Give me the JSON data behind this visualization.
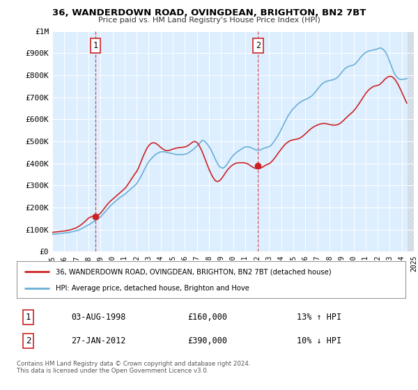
{
  "title": "36, WANDERDOWN ROAD, OVINGDEAN, BRIGHTON, BN2 7BT",
  "subtitle": "Price paid vs. HM Land Registry's House Price Index (HPI)",
  "ylim": [
    0,
    1000000
  ],
  "yticks": [
    0,
    100000,
    200000,
    300000,
    400000,
    500000,
    600000,
    700000,
    800000,
    900000,
    1000000
  ],
  "ytick_labels": [
    "£0",
    "£100K",
    "£200K",
    "£300K",
    "£400K",
    "£500K",
    "£600K",
    "£700K",
    "£800K",
    "£900K",
    "£1M"
  ],
  "hpi_color": "#6aaed6",
  "price_color": "#cc2222",
  "chart_bg": "#ddeeff",
  "bg_color": "#ffffff",
  "grid_color": "#ffffff",
  "sale1_year": 1998.6,
  "sale1_price": 160000,
  "sale2_year": 2012.08,
  "sale2_price": 390000,
  "xmin": 1995,
  "xmax": 2025,
  "future_start": 2024.5,
  "legend_line1": "36, WANDERDOWN ROAD, OVINGDEAN, BRIGHTON, BN2 7BT (detached house)",
  "legend_line2": "HPI: Average price, detached house, Brighton and Hove",
  "table_row1": [
    "1",
    "03-AUG-1998",
    "£160,000",
    "13% ↑ HPI"
  ],
  "table_row2": [
    "2",
    "27-JAN-2012",
    "£390,000",
    "10% ↓ HPI"
  ],
  "footnote": "Contains HM Land Registry data © Crown copyright and database right 2024.\nThis data is licensed under the Open Government Licence v3.0.",
  "hpi_x": [
    1995.0,
    1995.08,
    1995.17,
    1995.25,
    1995.33,
    1995.42,
    1995.5,
    1995.58,
    1995.67,
    1995.75,
    1995.83,
    1995.92,
    1996.0,
    1996.08,
    1996.17,
    1996.25,
    1996.33,
    1996.42,
    1996.5,
    1996.58,
    1996.67,
    1996.75,
    1996.83,
    1996.92,
    1997.0,
    1997.08,
    1997.17,
    1997.25,
    1997.33,
    1997.42,
    1997.5,
    1997.58,
    1997.67,
    1997.75,
    1997.83,
    1997.92,
    1998.0,
    1998.08,
    1998.17,
    1998.25,
    1998.33,
    1998.42,
    1998.5,
    1998.58,
    1998.67,
    1998.75,
    1998.83,
    1998.92,
    1999.0,
    1999.08,
    1999.17,
    1999.25,
    1999.33,
    1999.42,
    1999.5,
    1999.58,
    1999.67,
    1999.75,
    1999.83,
    1999.92,
    2000.0,
    2000.08,
    2000.17,
    2000.25,
    2000.33,
    2000.42,
    2000.5,
    2000.58,
    2000.67,
    2000.75,
    2000.83,
    2000.92,
    2001.0,
    2001.08,
    2001.17,
    2001.25,
    2001.33,
    2001.42,
    2001.5,
    2001.58,
    2001.67,
    2001.75,
    2001.83,
    2001.92,
    2002.0,
    2002.08,
    2002.17,
    2002.25,
    2002.33,
    2002.42,
    2002.5,
    2002.58,
    2002.67,
    2002.75,
    2002.83,
    2002.92,
    2003.0,
    2003.08,
    2003.17,
    2003.25,
    2003.33,
    2003.42,
    2003.5,
    2003.58,
    2003.67,
    2003.75,
    2003.83,
    2003.92,
    2004.0,
    2004.08,
    2004.17,
    2004.25,
    2004.33,
    2004.42,
    2004.5,
    2004.58,
    2004.67,
    2004.75,
    2004.83,
    2004.92,
    2005.0,
    2005.08,
    2005.17,
    2005.25,
    2005.33,
    2005.42,
    2005.5,
    2005.58,
    2005.67,
    2005.75,
    2005.83,
    2005.92,
    2006.0,
    2006.08,
    2006.17,
    2006.25,
    2006.33,
    2006.42,
    2006.5,
    2006.58,
    2006.67,
    2006.75,
    2006.83,
    2006.92,
    2007.0,
    2007.08,
    2007.17,
    2007.25,
    2007.33,
    2007.42,
    2007.5,
    2007.58,
    2007.67,
    2007.75,
    2007.83,
    2007.92,
    2008.0,
    2008.08,
    2008.17,
    2008.25,
    2008.33,
    2008.42,
    2008.5,
    2008.58,
    2008.67,
    2008.75,
    2008.83,
    2008.92,
    2009.0,
    2009.08,
    2009.17,
    2009.25,
    2009.33,
    2009.42,
    2009.5,
    2009.58,
    2009.67,
    2009.75,
    2009.83,
    2009.92,
    2010.0,
    2010.08,
    2010.17,
    2010.25,
    2010.33,
    2010.42,
    2010.5,
    2010.58,
    2010.67,
    2010.75,
    2010.83,
    2010.92,
    2011.0,
    2011.08,
    2011.17,
    2011.25,
    2011.33,
    2011.42,
    2011.5,
    2011.58,
    2011.67,
    2011.75,
    2011.83,
    2011.92,
    2012.0,
    2012.08,
    2012.17,
    2012.25,
    2012.33,
    2012.42,
    2012.5,
    2012.58,
    2012.67,
    2012.75,
    2012.83,
    2012.92,
    2013.0,
    2013.08,
    2013.17,
    2013.25,
    2013.33,
    2013.42,
    2013.5,
    2013.58,
    2013.67,
    2013.75,
    2013.83,
    2013.92,
    2014.0,
    2014.08,
    2014.17,
    2014.25,
    2014.33,
    2014.42,
    2014.5,
    2014.58,
    2014.67,
    2014.75,
    2014.83,
    2014.92,
    2015.0,
    2015.08,
    2015.17,
    2015.25,
    2015.33,
    2015.42,
    2015.5,
    2015.58,
    2015.67,
    2015.75,
    2015.83,
    2015.92,
    2016.0,
    2016.08,
    2016.17,
    2016.25,
    2016.33,
    2016.42,
    2016.5,
    2016.58,
    2016.67,
    2016.75,
    2016.83,
    2016.92,
    2017.0,
    2017.08,
    2017.17,
    2017.25,
    2017.33,
    2017.42,
    2017.5,
    2017.58,
    2017.67,
    2017.75,
    2017.83,
    2017.92,
    2018.0,
    2018.08,
    2018.17,
    2018.25,
    2018.33,
    2018.42,
    2018.5,
    2018.58,
    2018.67,
    2018.75,
    2018.83,
    2018.92,
    2019.0,
    2019.08,
    2019.17,
    2019.25,
    2019.33,
    2019.42,
    2019.5,
    2019.58,
    2019.67,
    2019.75,
    2019.83,
    2019.92,
    2020.0,
    2020.08,
    2020.17,
    2020.25,
    2020.33,
    2020.42,
    2020.5,
    2020.58,
    2020.67,
    2020.75,
    2020.83,
    2020.92,
    2021.0,
    2021.08,
    2021.17,
    2021.25,
    2021.33,
    2021.42,
    2021.5,
    2021.58,
    2021.67,
    2021.75,
    2021.83,
    2021.92,
    2022.0,
    2022.08,
    2022.17,
    2022.25,
    2022.33,
    2022.42,
    2022.5,
    2022.58,
    2022.67,
    2022.75,
    2022.83,
    2022.92,
    2023.0,
    2023.08,
    2023.17,
    2023.25,
    2023.33,
    2023.42,
    2023.5,
    2023.58,
    2023.67,
    2023.75,
    2023.83,
    2023.92,
    2024.0,
    2024.08,
    2024.17,
    2024.25,
    2024.33,
    2024.42
  ],
  "hpi_y": [
    78000,
    78500,
    79000,
    79500,
    80000,
    80500,
    81000,
    81500,
    82000,
    82500,
    83000,
    83500,
    84000,
    84500,
    85000,
    85500,
    86000,
    87000,
    88000,
    89000,
    90000,
    91000,
    92000,
    93000,
    94000,
    95500,
    97000,
    99000,
    101000,
    103500,
    106000,
    108500,
    111000,
    113500,
    116000,
    118500,
    121000,
    123000,
    126000,
    129000,
    132000,
    135000,
    138000,
    141000,
    144000,
    147000,
    150000,
    153000,
    157000,
    162000,
    167000,
    172000,
    177000,
    183000,
    188000,
    193000,
    198000,
    203000,
    208000,
    212000,
    216000,
    220000,
    224000,
    228000,
    232000,
    236000,
    240000,
    244000,
    247000,
    250000,
    253000,
    256000,
    259000,
    263000,
    267000,
    271000,
    275000,
    279000,
    283000,
    287000,
    291000,
    295000,
    299000,
    303000,
    308000,
    315000,
    322000,
    330000,
    338000,
    347000,
    356000,
    365000,
    374000,
    383000,
    392000,
    400000,
    407000,
    413000,
    418000,
    423000,
    428000,
    433000,
    437000,
    441000,
    444000,
    447000,
    449000,
    451000,
    452000,
    453000,
    453000,
    453000,
    452000,
    451000,
    450000,
    449000,
    448000,
    447000,
    446000,
    445000,
    444000,
    443000,
    442000,
    441000,
    440000,
    440000,
    440000,
    440000,
    440000,
    440000,
    440000,
    441000,
    442000,
    443000,
    444000,
    446000,
    449000,
    452000,
    455000,
    458000,
    462000,
    466000,
    470000,
    474000,
    478000,
    483000,
    488000,
    493000,
    498000,
    503000,
    505000,
    502000,
    499000,
    495000,
    490000,
    484000,
    477000,
    470000,
    462000,
    453000,
    443000,
    433000,
    423000,
    413000,
    404000,
    396000,
    389000,
    384000,
    381000,
    379000,
    379000,
    381000,
    385000,
    390000,
    396000,
    403000,
    410000,
    417000,
    424000,
    430000,
    435000,
    440000,
    444000,
    448000,
    452000,
    455000,
    458000,
    461000,
    464000,
    467000,
    470000,
    472000,
    474000,
    475000,
    475000,
    475000,
    474000,
    473000,
    471000,
    469000,
    467000,
    465000,
    463000,
    461000,
    460000,
    460000,
    460000,
    461000,
    463000,
    465000,
    467000,
    469000,
    471000,
    472000,
    473000,
    474000,
    476000,
    479000,
    483000,
    488000,
    494000,
    500000,
    507000,
    514000,
    521000,
    529000,
    537000,
    545000,
    554000,
    563000,
    573000,
    582000,
    591000,
    600000,
    609000,
    617000,
    624000,
    631000,
    637000,
    643000,
    648000,
    653000,
    658000,
    663000,
    667000,
    671000,
    675000,
    678000,
    681000,
    684000,
    686000,
    688000,
    690000,
    692000,
    694000,
    696000,
    699000,
    702000,
    705000,
    709000,
    714000,
    719000,
    724000,
    730000,
    736000,
    742000,
    748000,
    753000,
    758000,
    762000,
    765000,
    768000,
    770000,
    772000,
    774000,
    775000,
    776000,
    777000,
    778000,
    779000,
    780000,
    782000,
    784000,
    787000,
    791000,
    795000,
    800000,
    806000,
    812000,
    818000,
    823000,
    828000,
    832000,
    835000,
    838000,
    840000,
    842000,
    843000,
    844000,
    845000,
    847000,
    850000,
    854000,
    859000,
    864000,
    869000,
    875000,
    881000,
    887000,
    892000,
    896000,
    900000,
    903000,
    906000,
    908000,
    910000,
    911000,
    912000,
    913000,
    914000,
    915000,
    916000,
    917000,
    918000,
    920000,
    922000,
    924000,
    924000,
    922000,
    919000,
    915000,
    910000,
    903000,
    895000,
    885000,
    874000,
    862000,
    850000,
    838000,
    826000,
    815000,
    806000,
    798000,
    792000,
    787000,
    784000,
    782000,
    781000,
    781000,
    781000,
    782000,
    783000,
    784000,
    785000
  ],
  "price_x": [
    1995.0,
    1995.08,
    1995.17,
    1995.25,
    1995.33,
    1995.42,
    1995.5,
    1995.58,
    1995.67,
    1995.75,
    1995.83,
    1995.92,
    1996.0,
    1996.08,
    1996.17,
    1996.25,
    1996.33,
    1996.42,
    1996.5,
    1996.58,
    1996.67,
    1996.75,
    1996.83,
    1996.92,
    1997.0,
    1997.08,
    1997.17,
    1997.25,
    1997.33,
    1997.42,
    1997.5,
    1997.58,
    1997.67,
    1997.75,
    1997.83,
    1997.92,
    1998.0,
    1998.08,
    1998.17,
    1998.25,
    1998.33,
    1998.42,
    1998.5,
    1998.58,
    1998.67,
    1998.75,
    1998.83,
    1998.92,
    1999.0,
    1999.08,
    1999.17,
    1999.25,
    1999.33,
    1999.42,
    1999.5,
    1999.58,
    1999.67,
    1999.75,
    1999.83,
    1999.92,
    2000.0,
    2000.08,
    2000.17,
    2000.25,
    2000.33,
    2000.42,
    2000.5,
    2000.58,
    2000.67,
    2000.75,
    2000.83,
    2000.92,
    2001.0,
    2001.08,
    2001.17,
    2001.25,
    2001.33,
    2001.42,
    2001.5,
    2001.58,
    2001.67,
    2001.75,
    2001.83,
    2001.92,
    2002.0,
    2002.08,
    2002.17,
    2002.25,
    2002.33,
    2002.42,
    2002.5,
    2002.58,
    2002.67,
    2002.75,
    2002.83,
    2002.92,
    2003.0,
    2003.08,
    2003.17,
    2003.25,
    2003.33,
    2003.42,
    2003.5,
    2003.58,
    2003.67,
    2003.75,
    2003.83,
    2003.92,
    2004.0,
    2004.08,
    2004.17,
    2004.25,
    2004.33,
    2004.42,
    2004.5,
    2004.58,
    2004.67,
    2004.75,
    2004.83,
    2004.92,
    2005.0,
    2005.08,
    2005.17,
    2005.25,
    2005.33,
    2005.42,
    2005.5,
    2005.58,
    2005.67,
    2005.75,
    2005.83,
    2005.92,
    2006.0,
    2006.08,
    2006.17,
    2006.25,
    2006.33,
    2006.42,
    2006.5,
    2006.58,
    2006.67,
    2006.75,
    2006.83,
    2006.92,
    2007.0,
    2007.08,
    2007.17,
    2007.25,
    2007.33,
    2007.42,
    2007.5,
    2007.58,
    2007.67,
    2007.75,
    2007.83,
    2007.92,
    2008.0,
    2008.08,
    2008.17,
    2008.25,
    2008.33,
    2008.42,
    2008.5,
    2008.58,
    2008.67,
    2008.75,
    2008.83,
    2008.92,
    2009.0,
    2009.08,
    2009.17,
    2009.25,
    2009.33,
    2009.42,
    2009.5,
    2009.58,
    2009.67,
    2009.75,
    2009.83,
    2009.92,
    2010.0,
    2010.08,
    2010.17,
    2010.25,
    2010.33,
    2010.42,
    2010.5,
    2010.58,
    2010.67,
    2010.75,
    2010.83,
    2010.92,
    2011.0,
    2011.08,
    2011.17,
    2011.25,
    2011.33,
    2011.42,
    2011.5,
    2011.58,
    2011.67,
    2011.75,
    2011.83,
    2011.92,
    2012.0,
    2012.08,
    2012.17,
    2012.25,
    2012.33,
    2012.42,
    2012.5,
    2012.58,
    2012.67,
    2012.75,
    2012.83,
    2012.92,
    2013.0,
    2013.08,
    2013.17,
    2013.25,
    2013.33,
    2013.42,
    2013.5,
    2013.58,
    2013.67,
    2013.75,
    2013.83,
    2013.92,
    2014.0,
    2014.08,
    2014.17,
    2014.25,
    2014.33,
    2014.42,
    2014.5,
    2014.58,
    2014.67,
    2014.75,
    2014.83,
    2014.92,
    2015.0,
    2015.08,
    2015.17,
    2015.25,
    2015.33,
    2015.42,
    2015.5,
    2015.58,
    2015.67,
    2015.75,
    2015.83,
    2015.92,
    2016.0,
    2016.08,
    2016.17,
    2016.25,
    2016.33,
    2016.42,
    2016.5,
    2016.58,
    2016.67,
    2016.75,
    2016.83,
    2016.92,
    2017.0,
    2017.08,
    2017.17,
    2017.25,
    2017.33,
    2017.42,
    2017.5,
    2017.58,
    2017.67,
    2017.75,
    2017.83,
    2017.92,
    2018.0,
    2018.08,
    2018.17,
    2018.25,
    2018.33,
    2018.42,
    2018.5,
    2018.58,
    2018.67,
    2018.75,
    2018.83,
    2018.92,
    2019.0,
    2019.08,
    2019.17,
    2019.25,
    2019.33,
    2019.42,
    2019.5,
    2019.58,
    2019.67,
    2019.75,
    2019.83,
    2019.92,
    2020.0,
    2020.08,
    2020.17,
    2020.25,
    2020.33,
    2020.42,
    2020.5,
    2020.58,
    2020.67,
    2020.75,
    2020.83,
    2020.92,
    2021.0,
    2021.08,
    2021.17,
    2021.25,
    2021.33,
    2021.42,
    2021.5,
    2021.58,
    2021.67,
    2021.75,
    2021.83,
    2021.92,
    2022.0,
    2022.08,
    2022.17,
    2022.25,
    2022.33,
    2022.42,
    2022.5,
    2022.58,
    2022.67,
    2022.75,
    2022.83,
    2022.92,
    2023.0,
    2023.08,
    2023.17,
    2023.25,
    2023.33,
    2023.42,
    2023.5,
    2023.58,
    2023.67,
    2023.75,
    2023.83,
    2023.92,
    2024.0,
    2024.08,
    2024.17,
    2024.25,
    2024.33,
    2024.42
  ],
  "price_y": [
    87000,
    87500,
    88000,
    88500,
    89000,
    89500,
    90000,
    90500,
    91000,
    91500,
    92000,
    92500,
    93000,
    93800,
    94600,
    95500,
    96500,
    97500,
    98500,
    100000,
    101500,
    103000,
    104500,
    106000,
    108000,
    110500,
    113000,
    116000,
    119000,
    122500,
    126000,
    130000,
    134000,
    138000,
    142000,
    147000,
    152000,
    154000,
    156000,
    158000,
    160000,
    161000,
    161500,
    162000,
    163000,
    165000,
    167000,
    170000,
    174000,
    179000,
    185000,
    191000,
    197000,
    203000,
    209000,
    215000,
    220000,
    225000,
    229000,
    233000,
    237000,
    241000,
    245000,
    249000,
    253000,
    257000,
    261000,
    265000,
    269000,
    273000,
    277000,
    281000,
    285000,
    290000,
    296000,
    302000,
    309000,
    316000,
    323000,
    330000,
    337000,
    344000,
    351000,
    357000,
    363000,
    371000,
    381000,
    392000,
    403000,
    415000,
    426000,
    437000,
    447000,
    457000,
    466000,
    474000,
    480000,
    485000,
    489000,
    492000,
    493000,
    494000,
    493000,
    491000,
    488000,
    485000,
    481000,
    477000,
    473000,
    469000,
    466000,
    463000,
    460000,
    459000,
    458000,
    458000,
    459000,
    460000,
    461000,
    463000,
    465000,
    466000,
    468000,
    469000,
    470000,
    471000,
    471000,
    472000,
    472000,
    473000,
    473000,
    474000,
    475000,
    476000,
    478000,
    481000,
    484000,
    487000,
    491000,
    494000,
    497000,
    499000,
    499000,
    498000,
    495000,
    490000,
    483000,
    475000,
    466000,
    456000,
    445000,
    434000,
    422000,
    410000,
    398000,
    386000,
    375000,
    364000,
    354000,
    345000,
    337000,
    330000,
    324000,
    320000,
    318000,
    318000,
    320000,
    323000,
    328000,
    334000,
    340000,
    347000,
    354000,
    361000,
    367000,
    373000,
    378000,
    383000,
    387000,
    391000,
    394000,
    397000,
    399000,
    401000,
    402000,
    403000,
    403000,
    403000,
    403000,
    403000,
    403000,
    403000,
    402000,
    401000,
    399000,
    397000,
    394000,
    391000,
    388000,
    385000,
    382000,
    380000,
    378000,
    377000,
    376000,
    376000,
    377000,
    378000,
    380000,
    382000,
    385000,
    388000,
    391000,
    393000,
    395000,
    397000,
    399000,
    402000,
    406000,
    411000,
    416000,
    422000,
    428000,
    434000,
    440000,
    447000,
    453000,
    459000,
    465000,
    471000,
    477000,
    482000,
    487000,
    491000,
    495000,
    498000,
    501000,
    503000,
    505000,
    506000,
    507000,
    508000,
    509000,
    510000,
    511000,
    512000,
    514000,
    516000,
    519000,
    522000,
    526000,
    530000,
    534000,
    538000,
    543000,
    547000,
    551000,
    555000,
    559000,
    562000,
    565000,
    568000,
    570000,
    572000,
    574000,
    576000,
    578000,
    579000,
    580000,
    581000,
    581000,
    581000,
    581000,
    580000,
    579000,
    578000,
    577000,
    576000,
    575000,
    574000,
    574000,
    574000,
    574000,
    575000,
    576000,
    578000,
    580000,
    583000,
    587000,
    591000,
    595000,
    600000,
    604000,
    608000,
    613000,
    617000,
    621000,
    625000,
    629000,
    633000,
    638000,
    643000,
    649000,
    655000,
    662000,
    668000,
    675000,
    682000,
    689000,
    696000,
    703000,
    710000,
    717000,
    723000,
    728000,
    733000,
    737000,
    741000,
    744000,
    747000,
    749000,
    751000,
    752000,
    753000,
    754000,
    756000,
    758000,
    762000,
    766000,
    771000,
    776000,
    781000,
    785000,
    789000,
    792000,
    794000,
    795000,
    795000,
    794000,
    791000,
    787000,
    782000,
    776000,
    769000,
    761000,
    752000,
    743000,
    733000,
    723000,
    713000,
    703000,
    693000,
    683000,
    674000
  ]
}
